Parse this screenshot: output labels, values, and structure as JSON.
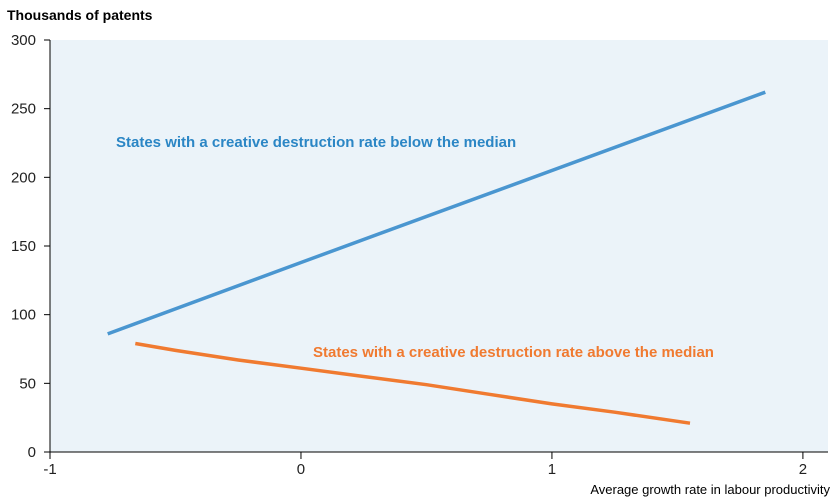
{
  "chart_data": {
    "type": "line",
    "ylabel": "Thousands of patents",
    "xlabel": "Average growth rate in labour productivity",
    "xlim": [
      -1,
      2.1
    ],
    "ylim": [
      0,
      300
    ],
    "xticks": [
      -1,
      0,
      1,
      2
    ],
    "yticks": [
      0,
      50,
      100,
      150,
      200,
      250,
      300
    ],
    "xtick_labels": [
      "-1",
      "0",
      "1",
      "2"
    ],
    "ytick_labels": [
      "0",
      "50",
      "100",
      "150",
      "200",
      "250",
      "300"
    ],
    "grid": false,
    "plot_background": "#ebf3f9",
    "series": [
      {
        "name": "States with a creative destruction rate below the median",
        "color": "#4a96d0",
        "x": [
          -0.77,
          0,
          1.85
        ],
        "y": [
          86,
          138,
          262
        ]
      },
      {
        "name": "States with a creative destruction rate above the median",
        "color": "#f07a30",
        "x": [
          -0.66,
          -0.5,
          -0.25,
          0,
          0.25,
          0.5,
          0.75,
          1,
          1.25,
          1.55
        ],
        "y": [
          79,
          74,
          67,
          61,
          55,
          49,
          42,
          35,
          29,
          21
        ]
      }
    ]
  }
}
